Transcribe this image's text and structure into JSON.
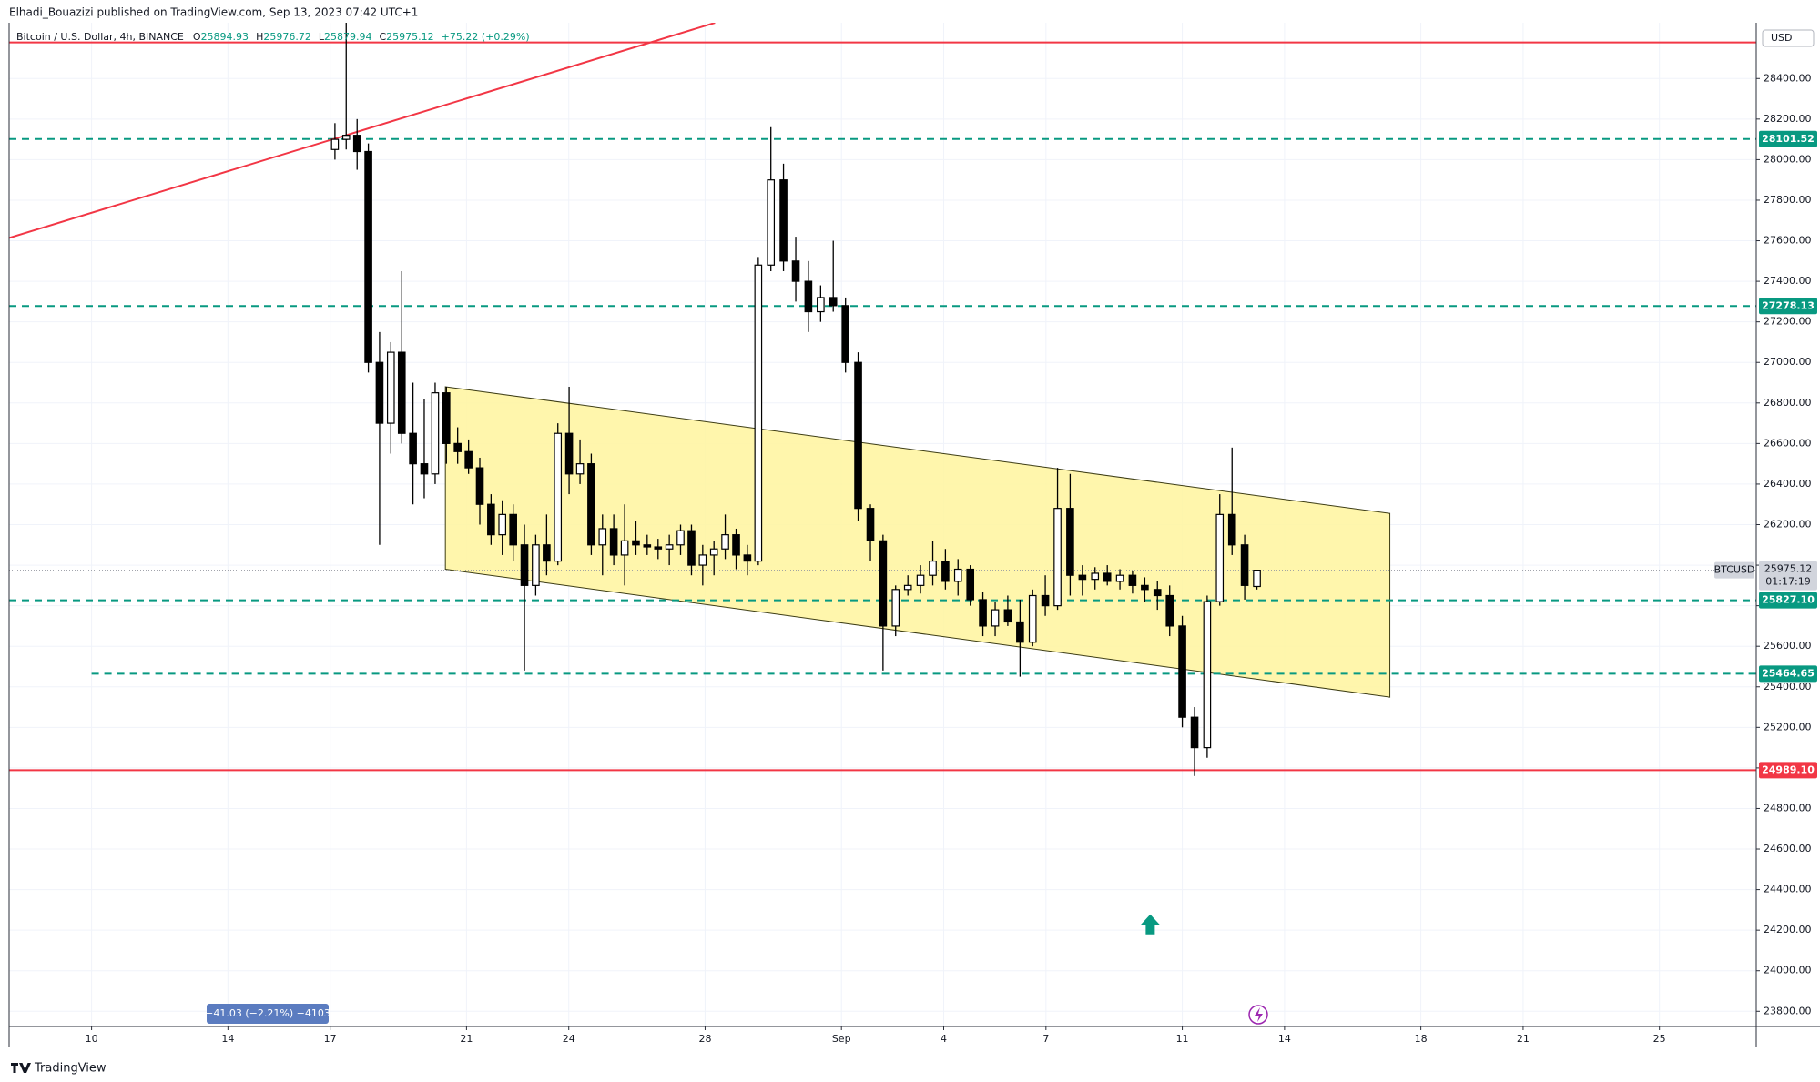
{
  "header": {
    "publisher": "Elhadi_Bouazizi published on TradingView.com, Sep 13, 2023 07:42 UTC+1",
    "brand": "TradingView"
  },
  "chart_data": {
    "type": "candlestick",
    "legend": {
      "title": "Bitcoin / U.S. Dollar, 4h, BINANCE",
      "ohlc_letters": [
        "O",
        "H",
        "L",
        "C"
      ],
      "change": "+75.22 (+0.29%)"
    },
    "currency": "USD",
    "x": [
      17.14,
      17.47,
      17.79,
      18.12,
      18.45,
      18.78,
      19.1,
      19.43,
      19.76,
      20.08,
      20.41,
      20.74,
      21.06,
      21.39,
      21.72,
      22.05,
      22.37,
      22.7,
      23.03,
      23.35,
      23.68,
      24.01,
      24.33,
      24.66,
      24.99,
      25.32,
      25.64,
      25.97,
      26.3,
      26.62,
      26.95,
      27.28,
      27.6,
      27.93,
      28.26,
      28.59,
      28.91,
      29.24,
      29.56,
      29.93,
      30.3,
      30.66,
      31.03,
      31.39,
      31.76,
      32.12,
      32.49,
      32.85,
      33.22,
      33.59,
      33.95,
      34.32,
      34.68,
      35.05,
      35.42,
      35.78,
      36.15,
      36.51,
      36.88,
      37.24,
      37.61,
      37.98,
      38.34,
      38.71,
      39.07,
      39.44,
      39.8,
      40.17,
      40.54,
      40.9,
      41.27,
      41.63,
      42.0,
      42.36,
      42.73,
      43.1,
      43.46,
      43.83,
      44.19
    ],
    "open": [
      28050,
      28100,
      28120,
      28040,
      27000,
      26700,
      27050,
      26650,
      26500,
      26450,
      26850,
      26600,
      26560,
      26480,
      26300,
      26150,
      26250,
      26100,
      25900,
      26100,
      26020,
      26650,
      26450,
      26500,
      26100,
      26180,
      26050,
      26120,
      26100,
      26090,
      26080,
      26100,
      26170,
      26000,
      26050,
      26080,
      26150,
      26050,
      26020,
      27480,
      27900,
      27500,
      27400,
      27250,
      27320,
      27280,
      27000,
      26280,
      26120,
      25700,
      25880,
      25900,
      25950,
      26020,
      25920,
      25980,
      25830,
      25700,
      25780,
      25720,
      25620,
      25850,
      25800,
      26280,
      25950,
      25930,
      25960,
      25920,
      25950,
      25900,
      25880,
      25850,
      25700,
      25250,
      25100,
      25820,
      26250,
      26100,
      25894.93
    ],
    "high": [
      28180,
      28675,
      28200,
      28080,
      27150,
      27100,
      27450,
      26900,
      26820,
      26900,
      26880,
      26680,
      26620,
      26530,
      26350,
      26320,
      26300,
      26200,
      26150,
      26250,
      26700,
      26880,
      26620,
      26550,
      26250,
      26250,
      26300,
      26220,
      26150,
      26130,
      26150,
      26200,
      26200,
      26100,
      26120,
      26250,
      26180,
      26100,
      27520,
      28160,
      27980,
      27620,
      27500,
      27380,
      27600,
      27320,
      27050,
      26300,
      26150,
      25900,
      25950,
      26000,
      26120,
      26080,
      26030,
      26000,
      25870,
      25820,
      25850,
      25830,
      25880,
      25950,
      26480,
      26450,
      26000,
      25990,
      26000,
      25980,
      25970,
      25940,
      25920,
      25900,
      25750,
      25300,
      25850,
      26350,
      26580,
      26150,
      25976.72
    ],
    "low": [
      28000,
      28050,
      27950,
      26950,
      26100,
      26550,
      26600,
      26300,
      26330,
      26400,
      26500,
      26500,
      26450,
      26200,
      26100,
      26050,
      26020,
      25480,
      25850,
      25950,
      26000,
      26350,
      26400,
      26050,
      25950,
      26000,
      25900,
      26050,
      26050,
      26030,
      26000,
      26050,
      25950,
      25900,
      25950,
      26030,
      25980,
      25950,
      26000,
      27450,
      27450,
      27300,
      27150,
      27200,
      27250,
      26950,
      26220,
      26020,
      25480,
      25650,
      25850,
      25860,
      25900,
      25880,
      25850,
      25800,
      25650,
      25650,
      25700,
      25450,
      25600,
      25750,
      25780,
      25850,
      25850,
      25880,
      25900,
      25880,
      25860,
      25820,
      25780,
      25650,
      25200,
      24960,
      25050,
      25800,
      26050,
      25830,
      25879.94
    ],
    "close": [
      28100,
      28120,
      28040,
      27000,
      26700,
      27050,
      26650,
      26500,
      26450,
      26850,
      26600,
      26560,
      26480,
      26300,
      26150,
      26250,
      26100,
      25900,
      26100,
      26020,
      26650,
      26450,
      26500,
      26100,
      26180,
      26050,
      26120,
      26100,
      26090,
      26080,
      26100,
      26170,
      26000,
      26050,
      26080,
      26150,
      26050,
      26020,
      27480,
      27900,
      27500,
      27400,
      27250,
      27320,
      27280,
      27000,
      26280,
      26120,
      25700,
      25880,
      25900,
      25950,
      26020,
      25920,
      25980,
      25830,
      25700,
      25780,
      25720,
      25620,
      25850,
      25800,
      26280,
      25950,
      25930,
      25960,
      25920,
      25950,
      25900,
      25880,
      25850,
      25700,
      25250,
      25100,
      25820,
      26250,
      26100,
      25900,
      25975.12
    ],
    "xlim": [
      7.58,
      58.84
    ],
    "ylim": [
      23725,
      28675
    ],
    "xticks": [
      10,
      14,
      17,
      21,
      24,
      28,
      {
        "value": 32,
        "label": "Sep"
      },
      {
        "value": 35,
        "label": "4"
      },
      {
        "value": 38,
        "label": "7"
      },
      {
        "value": 42,
        "label": "11"
      },
      {
        "value": 45,
        "label": "14"
      },
      {
        "value": 49,
        "label": "18"
      },
      {
        "value": 52,
        "label": "21"
      },
      {
        "value": 56,
        "label": "25"
      }
    ],
    "yticks": [
      {
        "value": 23800,
        "label": "23800.00"
      },
      {
        "value": 24000,
        "label": "24000.00"
      },
      {
        "value": 24200,
        "label": "24200.00"
      },
      {
        "value": 24400,
        "label": "24400.00"
      },
      {
        "value": 24600,
        "label": "24600.00"
      },
      {
        "value": 24800,
        "label": "24800.00"
      },
      {
        "value": 25000,
        "label": "25000.00"
      },
      {
        "value": 25200,
        "label": "25200.00"
      },
      {
        "value": 25400,
        "label": "25400.00"
      },
      {
        "value": 25600,
        "label": "25600.00"
      },
      {
        "value": 25800,
        "label": "25800.00"
      },
      {
        "value": 26000,
        "label": "26000.00"
      },
      {
        "value": 26200,
        "label": "26200.00"
      },
      {
        "value": 26400,
        "label": "26400.00"
      },
      {
        "value": 26600,
        "label": "26600.00"
      },
      {
        "value": 26800,
        "label": "26800.00"
      },
      {
        "value": 27000,
        "label": "27000.00"
      },
      {
        "value": 27200,
        "label": "27200.00"
      },
      {
        "value": 27400,
        "label": "27400.00"
      },
      {
        "value": 27600,
        "label": "27600.00"
      },
      {
        "value": 27800,
        "label": "27800.00"
      },
      {
        "value": 28000,
        "label": "28000.00"
      },
      {
        "value": 28200,
        "label": "28200.00"
      },
      {
        "value": 28400,
        "label": "28400.00"
      }
    ],
    "grid": true,
    "up_color": "#ffffff",
    "down_color": "#000000",
    "hlines": [
      {
        "value": 28578,
        "color": "#f23645",
        "dashed": false
      },
      {
        "value": 28101.52,
        "color": "#089981",
        "dashed": true
      },
      {
        "value": 27278.13,
        "color": "#089981",
        "dashed": true
      },
      {
        "value": 25827.1,
        "label": "25827.10",
        "color": "#089981",
        "dashed": true
      },
      {
        "value": 25464.65,
        "color": "#089981",
        "dashed": true,
        "x_start": 10
      },
      {
        "value": 24989.1,
        "label": "24989.10",
        "color": "#f23645",
        "dashed": false
      }
    ],
    "trendline": {
      "x": [
        7.58,
        28.29
      ],
      "y": [
        27614,
        28675
      ],
      "color": "#f23645"
    },
    "channel": {
      "x": [
        20.38,
        48.09
      ],
      "upper": [
        26880,
        26255
      ],
      "lower": [
        25980,
        25349
      ],
      "color": "#fff59d"
    },
    "last_price": {
      "symbol": "BTCUSD",
      "countdown": "01:17:19"
    },
    "arrow": {
      "x": 41.06,
      "y": 24224,
      "color": "#089981"
    },
    "measure": "−41.03 (−2.21%) −4103"
  }
}
